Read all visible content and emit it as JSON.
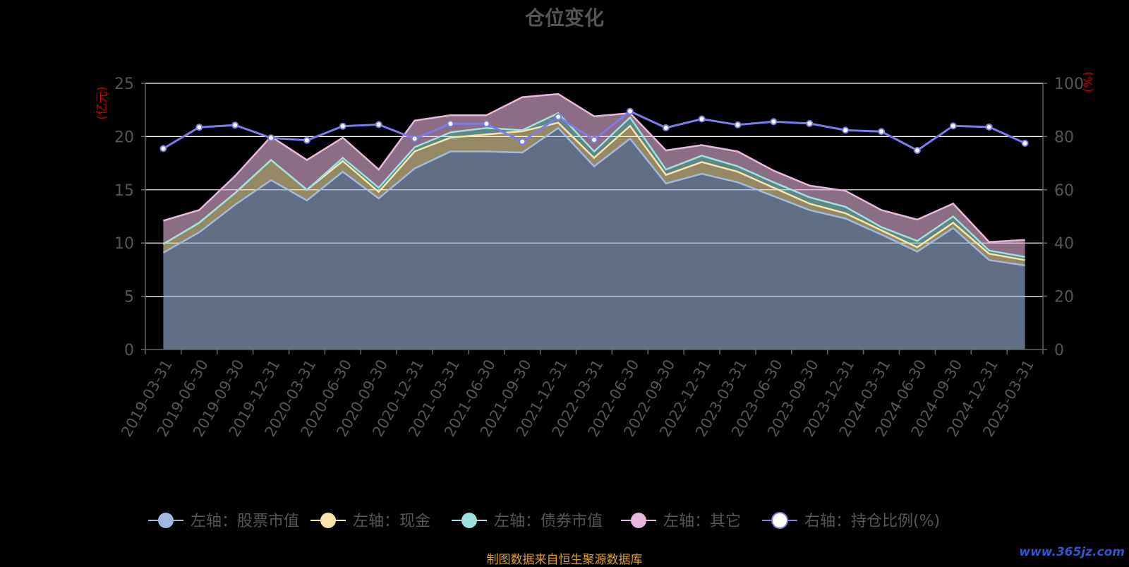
{
  "colors": {
    "background": "#000000",
    "stock": "#a0b8e0",
    "cash": "#f8e4a8",
    "bond": "#9ee0dc",
    "other": "#e8b8dc",
    "ratio": "#7b7bea",
    "grid": "#ffffff",
    "axis_unit": "#cc0000",
    "text": "#555555",
    "source": "#e0a030"
  },
  "chart_data": {
    "type": "area",
    "title": "仓位变化",
    "y_left_unit": "(亿元)",
    "y_right_unit": "(%)",
    "ylim_left": [
      0,
      25
    ],
    "ylim_right": [
      0,
      100
    ],
    "yticks_left": [
      0,
      5,
      10,
      15,
      20,
      25
    ],
    "yticks_right": [
      0,
      20,
      40,
      60,
      80,
      100
    ],
    "stacked": true,
    "grid": true,
    "legend_position": "bottom",
    "categories": [
      "2019-03-31",
      "2019-06-30",
      "2019-09-30",
      "2019-12-31",
      "2020-03-31",
      "2020-06-30",
      "2020-09-30",
      "2020-12-31",
      "2021-03-31",
      "2021-06-30",
      "2021-09-30",
      "2021-12-31",
      "2022-03-31",
      "2022-06-30",
      "2022-09-30",
      "2022-12-31",
      "2023-03-31",
      "2023-06-30",
      "2023-09-30",
      "2023-12-31",
      "2024-03-31",
      "2024-06-30",
      "2024-09-30",
      "2024-12-31",
      "2025-03-31"
    ],
    "series": [
      {
        "name": "左轴：股票市值",
        "axis": "left",
        "values": [
          9.1,
          11.0,
          13.6,
          15.9,
          14.0,
          16.7,
          14.2,
          17.0,
          18.6,
          18.6,
          18.5,
          20.8,
          17.2,
          19.8,
          15.6,
          16.5,
          15.7,
          14.4,
          13.1,
          12.3,
          10.8,
          9.2,
          11.4,
          8.4,
          7.9
        ]
      },
      {
        "name": "左轴：现金",
        "axis": "left",
        "values": [
          0.8,
          0.9,
          1.1,
          1.9,
          1.0,
          1.0,
          0.6,
          1.6,
          1.3,
          1.6,
          2.0,
          0.5,
          0.8,
          1.2,
          0.8,
          1.1,
          1.0,
          0.8,
          0.6,
          0.5,
          0.4,
          0.4,
          0.5,
          0.6,
          0.5
        ]
      },
      {
        "name": "左轴：债券市值",
        "axis": "left",
        "values": [
          0,
          0,
          0,
          0,
          0,
          0.3,
          0.4,
          0.4,
          0.5,
          0.6,
          0.1,
          0.9,
          0.6,
          0.8,
          0.5,
          0.6,
          0.5,
          0.5,
          0.6,
          0.6,
          0.3,
          0.6,
          0.6,
          0.3,
          0.3
        ]
      },
      {
        "name": "左轴：其它",
        "axis": "left",
        "values": [
          2.2,
          1.2,
          1.6,
          2.2,
          2.8,
          1.9,
          1.7,
          2.5,
          1.6,
          1.2,
          3.1,
          1.8,
          3.3,
          0.4,
          1.8,
          1.0,
          1.4,
          1.1,
          1.1,
          1.5,
          1.6,
          2.0,
          1.2,
          0.8,
          1.6
        ]
      },
      {
        "name": "右轴：持仓比例(%)",
        "axis": "right",
        "type": "line",
        "values": [
          75.5,
          83.5,
          84.3,
          79.5,
          78.6,
          83.9,
          84.5,
          79.2,
          84.8,
          84.8,
          78.1,
          87.4,
          78.8,
          89.5,
          83.3,
          86.6,
          84.4,
          85.6,
          84.9,
          82.4,
          81.9,
          74.8,
          84.0,
          83.6,
          77.5
        ]
      }
    ]
  },
  "footer": {
    "source": "制图数据来自恒生聚源数据库",
    "watermark": "www.365jz.com"
  }
}
